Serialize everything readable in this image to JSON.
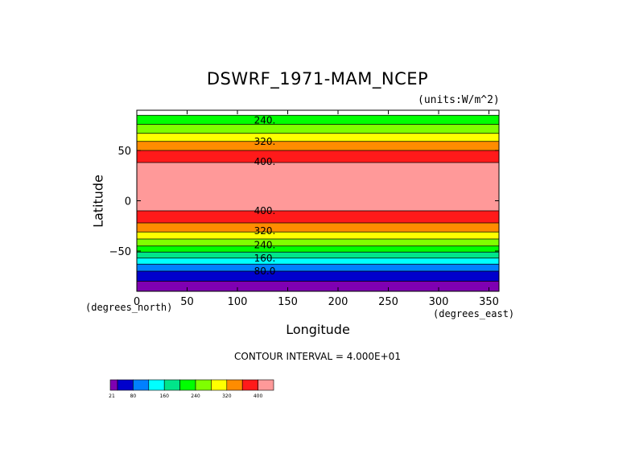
{
  "chart_data": {
    "type": "heatmap",
    "title": "DSWRF_1971-MAM_NCEP",
    "units": "(units:W/m^2)",
    "xlabel": "Longitude",
    "ylabel": "Latitude",
    "x_unit_label": "(degrees_east)",
    "y_unit_label": "(degrees_north)",
    "xlim": [
      0,
      360
    ],
    "ylim": [
      -90,
      90
    ],
    "x_ticks": [
      0,
      50,
      100,
      150,
      200,
      250,
      300,
      350
    ],
    "y_ticks": [
      50,
      0,
      -50
    ],
    "contour_interval_text": "CONTOUR INTERVAL = 4.000E+01",
    "bands": [
      {
        "lat_from": 85,
        "lat_to": 90,
        "color": "#ffffff"
      },
      {
        "lat_from": 76,
        "lat_to": 85,
        "color": "#00ff00"
      },
      {
        "lat_from": 67,
        "lat_to": 76,
        "color": "#7fff00"
      },
      {
        "lat_from": 59,
        "lat_to": 67,
        "color": "#ffff00"
      },
      {
        "lat_from": 50,
        "lat_to": 59,
        "color": "#ff8c00"
      },
      {
        "lat_from": 38,
        "lat_to": 50,
        "color": "#ff1a1a"
      },
      {
        "lat_from": -10,
        "lat_to": 38,
        "color": "#ff9999"
      },
      {
        "lat_from": -22,
        "lat_to": -10,
        "color": "#ff1a1a"
      },
      {
        "lat_from": -31,
        "lat_to": -22,
        "color": "#ff8c00"
      },
      {
        "lat_from": -38,
        "lat_to": -31,
        "color": "#ffff00"
      },
      {
        "lat_from": -45,
        "lat_to": -38,
        "color": "#7fff00"
      },
      {
        "lat_from": -51,
        "lat_to": -45,
        "color": "#00ff00"
      },
      {
        "lat_from": -57,
        "lat_to": -51,
        "color": "#00e58a"
      },
      {
        "lat_from": -63,
        "lat_to": -57,
        "color": "#00ffff"
      },
      {
        "lat_from": -70,
        "lat_to": -63,
        "color": "#0080ff"
      },
      {
        "lat_from": -80,
        "lat_to": -70,
        "color": "#0000cc"
      },
      {
        "lat_from": -90,
        "lat_to": -80,
        "color": "#7f00b2"
      }
    ],
    "contour_labels": [
      {
        "text": "240.",
        "lat": 80
      },
      {
        "text": "320.",
        "lat": 59
      },
      {
        "text": "400.",
        "lat": 39
      },
      {
        "text": "400.",
        "lat": -10
      },
      {
        "text": "320.",
        "lat": -30
      },
      {
        "text": "240.",
        "lat": -44
      },
      {
        "text": "160.",
        "lat": -57
      },
      {
        "text": "80.0",
        "lat": -70
      }
    ],
    "colorbar": {
      "colors": [
        "#7f00b2",
        "#0000cc",
        "#0080ff",
        "#00ffff",
        "#00e58a",
        "#00ff00",
        "#7fff00",
        "#ffff00",
        "#ff8c00",
        "#ff1a1a",
        "#ff9999"
      ],
      "labels": [
        {
          "text": "21",
          "index": 0
        },
        {
          "text": "80",
          "index": 1.5
        },
        {
          "text": "160",
          "index": 3.5
        },
        {
          "text": "240",
          "index": 5.5
        },
        {
          "text": "320",
          "index": 7.5
        },
        {
          "text": "400",
          "index": 9.5
        }
      ]
    }
  }
}
